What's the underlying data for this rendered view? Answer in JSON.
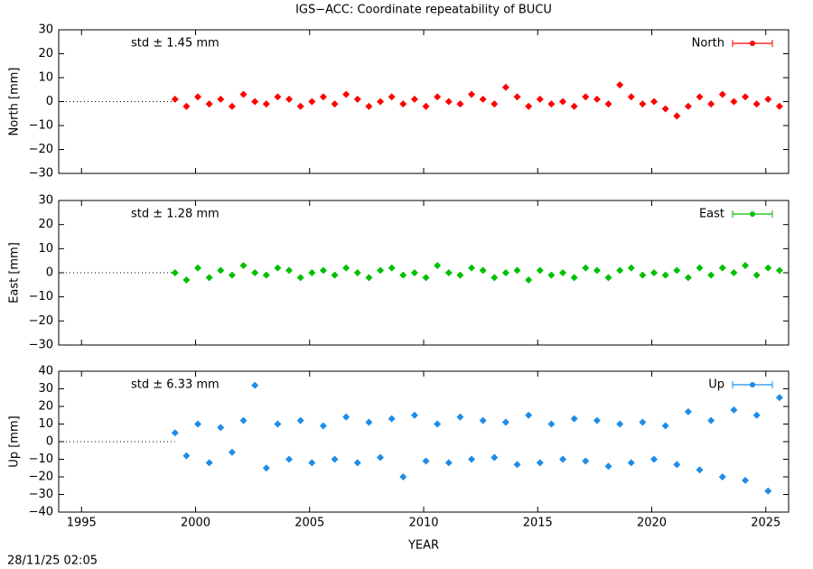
{
  "title": "IGS−ACC: Coordinate repeatability of BUCU",
  "timestamp": "28/11/25 02:05",
  "chart_data": [
    {
      "type": "scatter",
      "ylabel": "North [mm]",
      "annotation": "std ± 1.45 mm",
      "xlim": [
        1994,
        2026
      ],
      "xticks": [
        1995,
        2000,
        2005,
        2010,
        2015,
        2020,
        2025
      ],
      "ylim": [
        -30,
        30
      ],
      "yticks": [
        {
          "value": -30,
          "label": "−30"
        },
        {
          "value": -20,
          "label": "−20"
        },
        {
          "value": -10,
          "label": "−10"
        },
        0,
        10,
        20,
        30
      ],
      "series": [
        {
          "name": "North",
          "color": "#ff0000",
          "x": [
            1999.1,
            1999.6,
            2000.1,
            2000.6,
            2001.1,
            2001.6,
            2002.1,
            2002.6,
            2003.1,
            2003.6,
            2004.1,
            2004.6,
            2005.1,
            2005.6,
            2006.1,
            2006.6,
            2007.1,
            2007.6,
            2008.1,
            2008.6,
            2009.1,
            2009.6,
            2010.1,
            2010.6,
            2011.1,
            2011.6,
            2012.1,
            2012.6,
            2013.1,
            2013.6,
            2014.1,
            2014.6,
            2015.1,
            2015.6,
            2016.1,
            2016.6,
            2017.1,
            2017.6,
            2018.1,
            2018.6,
            2019.1,
            2019.6,
            2020.1,
            2020.6,
            2021.1,
            2021.6,
            2022.1,
            2022.6,
            2023.1,
            2023.6,
            2024.1,
            2024.6,
            2025.1,
            2025.6
          ],
          "values": [
            1,
            -2,
            2,
            -1,
            1,
            -2,
            3,
            0,
            -1,
            2,
            1,
            -2,
            0,
            2,
            -1,
            3,
            1,
            -2,
            0,
            2,
            -1,
            1,
            -2,
            2,
            0,
            -1,
            3,
            1,
            -1,
            6,
            2,
            -2,
            1,
            -1,
            0,
            -2,
            2,
            1,
            -1,
            7,
            2,
            -1,
            0,
            -3,
            -6,
            -2,
            2,
            -1,
            3,
            0,
            2,
            -1,
            1,
            -2
          ]
        }
      ]
    },
    {
      "type": "scatter",
      "ylabel": "East [mm]",
      "annotation": "std ± 1.28 mm",
      "xlim": [
        1994,
        2026
      ],
      "xticks": [
        1995,
        2000,
        2005,
        2010,
        2015,
        2020,
        2025
      ],
      "ylim": [
        -30,
        30
      ],
      "yticks": [
        {
          "value": -30,
          "label": "−30"
        },
        {
          "value": -20,
          "label": "−20"
        },
        {
          "value": -10,
          "label": "−10"
        },
        0,
        10,
        20,
        30
      ],
      "series": [
        {
          "name": "East",
          "color": "#00c000",
          "x": [
            1999.1,
            1999.6,
            2000.1,
            2000.6,
            2001.1,
            2001.6,
            2002.1,
            2002.6,
            2003.1,
            2003.6,
            2004.1,
            2004.6,
            2005.1,
            2005.6,
            2006.1,
            2006.6,
            2007.1,
            2007.6,
            2008.1,
            2008.6,
            2009.1,
            2009.6,
            2010.1,
            2010.6,
            2011.1,
            2011.6,
            2012.1,
            2012.6,
            2013.1,
            2013.6,
            2014.1,
            2014.6,
            2015.1,
            2015.6,
            2016.1,
            2016.6,
            2017.1,
            2017.6,
            2018.1,
            2018.6,
            2019.1,
            2019.6,
            2020.1,
            2020.6,
            2021.1,
            2021.6,
            2022.1,
            2022.6,
            2023.1,
            2023.6,
            2024.1,
            2024.6,
            2025.1,
            2025.6
          ],
          "values": [
            0,
            -3,
            2,
            -2,
            1,
            -1,
            3,
            0,
            -1,
            2,
            1,
            -2,
            0,
            1,
            -1,
            2,
            0,
            -2,
            1,
            2,
            -1,
            0,
            -2,
            3,
            0,
            -1,
            2,
            1,
            -2,
            0,
            1,
            -3,
            1,
            -1,
            0,
            -2,
            2,
            1,
            -2,
            1,
            2,
            -1,
            0,
            -1,
            1,
            -2,
            2,
            -1,
            2,
            0,
            3,
            -1,
            2,
            1
          ]
        }
      ]
    },
    {
      "type": "scatter",
      "ylabel": "Up [mm]",
      "annotation": "std ± 6.33 mm",
      "xlabel": "YEAR",
      "xlim": [
        1994,
        2026
      ],
      "xticks": [
        1995,
        2000,
        2005,
        2010,
        2015,
        2020,
        2025
      ],
      "ylim": [
        -40,
        40
      ],
      "yticks": [
        {
          "value": -40,
          "label": "−40"
        },
        {
          "value": -30,
          "label": "−30"
        },
        {
          "value": -20,
          "label": "−20"
        },
        {
          "value": -10,
          "label": "−10"
        },
        0,
        10,
        20,
        30,
        40
      ],
      "series": [
        {
          "name": "Up",
          "color": "#1e8ce8",
          "x": [
            1999.1,
            1999.6,
            2000.1,
            2000.6,
            2001.1,
            2001.6,
            2002.1,
            2002.6,
            2003.1,
            2003.6,
            2004.1,
            2004.6,
            2005.1,
            2005.6,
            2006.1,
            2006.6,
            2007.1,
            2007.6,
            2008.1,
            2008.6,
            2009.1,
            2009.6,
            2010.1,
            2010.6,
            2011.1,
            2011.6,
            2012.1,
            2012.6,
            2013.1,
            2013.6,
            2014.1,
            2014.6,
            2015.1,
            2015.6,
            2016.1,
            2016.6,
            2017.1,
            2017.6,
            2018.1,
            2018.6,
            2019.1,
            2019.6,
            2020.1,
            2020.6,
            2021.1,
            2021.6,
            2022.1,
            2022.6,
            2023.1,
            2023.6,
            2024.1,
            2024.6,
            2025.1,
            2025.6
          ],
          "values": [
            5,
            -8,
            10,
            -12,
            8,
            -6,
            12,
            32,
            -15,
            10,
            -10,
            12,
            -12,
            9,
            -10,
            14,
            -12,
            11,
            -9,
            13,
            -20,
            15,
            -11,
            10,
            -12,
            14,
            -10,
            12,
            -9,
            11,
            -13,
            15,
            -12,
            10,
            -10,
            13,
            -11,
            12,
            -14,
            10,
            -12,
            11,
            -10,
            9,
            -13,
            17,
            -16,
            12,
            -20,
            18,
            -22,
            15,
            -28,
            25
          ]
        }
      ]
    }
  ]
}
